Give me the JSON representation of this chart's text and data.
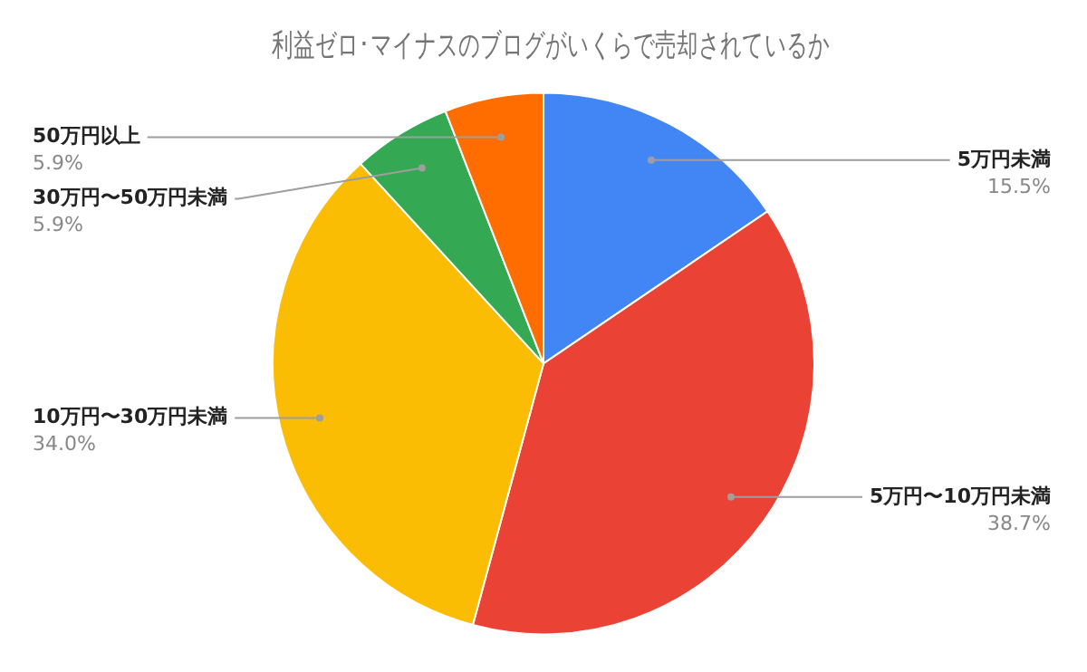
{
  "chart_data": {
    "type": "pie",
    "title": "利益ゼロ･マイナスのブログがいくらで売却されているか",
    "categories": [
      "5万円未満",
      "5万円〜10万円未満",
      "10万円〜30万円未満",
      "30万円〜50万円未満",
      "50万円以上"
    ],
    "values": [
      15.5,
      38.7,
      34.0,
      5.9,
      5.9
    ],
    "value_labels": [
      "15.5%",
      "38.7%",
      "34.0%",
      "5.9%",
      "5.9%"
    ],
    "colors": [
      "#4285f4",
      "#ea4335",
      "#fbbc04",
      "#34a853",
      "#ff6d01"
    ],
    "legend": false
  }
}
